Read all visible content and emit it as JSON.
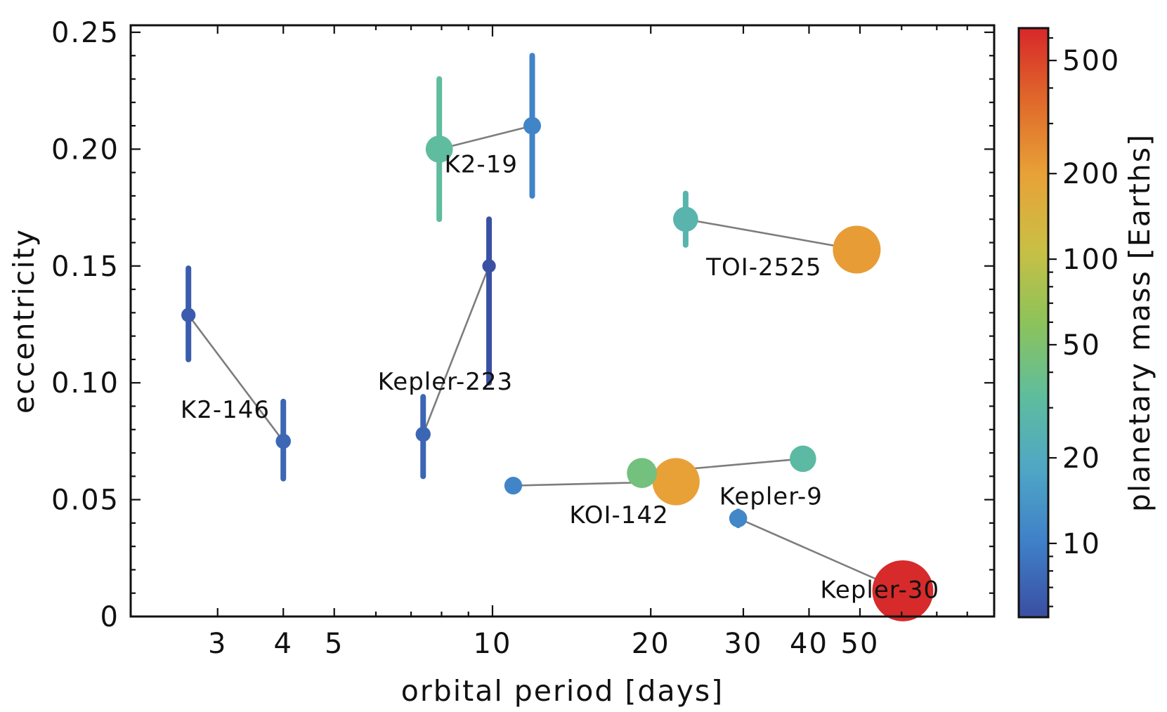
{
  "chart_data": {
    "type": "scatter",
    "xlabel": "orbital period [days]",
    "ylabel": "eccentricity",
    "x_scale": "log",
    "xlim": [
      2.05,
      90
    ],
    "ylim": [
      0,
      0.253
    ],
    "x_ticks": [
      {
        "value": 3,
        "label": "3"
      },
      {
        "value": 4,
        "label": "4"
      },
      {
        "value": 5,
        "label": "5"
      },
      {
        "value": 10,
        "label": "10"
      },
      {
        "value": 20,
        "label": "20"
      },
      {
        "value": 30,
        "label": "30"
      },
      {
        "value": 40,
        "label": "40"
      },
      {
        "value": 50,
        "label": "50"
      }
    ],
    "y_ticks": [
      {
        "value": 0,
        "label": "0"
      },
      {
        "value": 0.05,
        "label": "0.05"
      },
      {
        "value": 0.1,
        "label": "0.10"
      },
      {
        "value": 0.15,
        "label": "0.15"
      },
      {
        "value": 0.2,
        "label": "0.20"
      },
      {
        "value": 0.25,
        "label": "0.25"
      }
    ],
    "grid": false,
    "colorbar": {
      "label": "planetary mass [Earths]",
      "scale": "log",
      "range": [
        5.5,
        650
      ],
      "ticks": [
        {
          "value": 10,
          "label": "10"
        },
        {
          "value": 20,
          "label": "20"
        },
        {
          "value": 50,
          "label": "50"
        },
        {
          "value": 100,
          "label": "100"
        },
        {
          "value": 200,
          "label": "200"
        },
        {
          "value": 500,
          "label": "500"
        }
      ],
      "colormap": [
        "#3a4ea1",
        "#3f7fc8",
        "#4ea6c5",
        "#5fbd9d",
        "#8cc35a",
        "#c9bf45",
        "#e8a237",
        "#e06a2b",
        "#d7282a"
      ]
    },
    "systems": [
      {
        "name": "K2-146",
        "label_at": {
          "x": 2.55,
          "y": 0.085
        },
        "planets": [
          {
            "period": 2.64,
            "ecc": 0.129,
            "err": [
              0.019,
              0.02
            ],
            "mass": 6.5
          },
          {
            "period": 4.0,
            "ecc": 0.075,
            "err": [
              0.016,
              0.017
            ],
            "mass": 7.5
          }
        ]
      },
      {
        "name": "Kepler-223",
        "label_at": {
          "x": 6.05,
          "y": 0.097
        },
        "planets": [
          {
            "period": 7.38,
            "ecc": 0.078,
            "err": [
              0.018,
              0.016
            ],
            "mass": 7.4
          },
          {
            "period": 9.85,
            "ecc": 0.15,
            "err": [
              0.05,
              0.02
            ],
            "mass": 5.7
          }
        ]
      },
      {
        "name": "K2-19",
        "label_at": {
          "x": 8.1,
          "y": 0.19
        },
        "planets": [
          {
            "period": 7.92,
            "ecc": 0.2,
            "err": [
              0.03,
              0.03
            ],
            "mass": 32.4
          },
          {
            "period": 11.9,
            "ecc": 0.21,
            "err": [
              0.03,
              0.03
            ],
            "mass": 10.8
          }
        ]
      },
      {
        "name": "TOI-2525",
        "label_at": {
          "x": 25.5,
          "y": 0.146
        },
        "planets": [
          {
            "period": 23.3,
            "ecc": 0.17,
            "err": [
              0.011,
              0.011
            ],
            "mass": 26.0
          },
          {
            "period": 49.3,
            "ecc": 0.157,
            "err": [
              0.0,
              0.0
            ],
            "mass": 210.0
          }
        ]
      },
      {
        "name": "KOI-142",
        "label_at": {
          "x": 14.0,
          "y": 0.04
        },
        "planets": [
          {
            "period": 10.95,
            "ecc": 0.056,
            "err": [
              0.0,
              0.0
            ],
            "mass": 11.0
          },
          {
            "period": 22.34,
            "ecc": 0.0577,
            "err": [
              0.0,
              0.0
            ],
            "mass": 200.0
          }
        ]
      },
      {
        "name": "Kepler-9",
        "label_at": {
          "x": 27.0,
          "y": 0.048
        },
        "planets": [
          {
            "period": 19.24,
            "ecc": 0.0614,
            "err": [
              0.0,
              0.0
            ],
            "mass": 43.0
          },
          {
            "period": 38.95,
            "ecc": 0.0675,
            "err": [
              0.0,
              0.0
            ],
            "mass": 30.0
          }
        ]
      },
      {
        "name": "Kepler-30",
        "label_at": {
          "x": 42.0,
          "y": 0.008
        },
        "planets": [
          {
            "period": 29.33,
            "ecc": 0.042,
            "err": [
              0.003,
              0.003
            ],
            "mass": 11.3
          },
          {
            "period": 60.32,
            "ecc": 0.011,
            "err": [
              0.0,
              0.0
            ],
            "mass": 640.0
          }
        ]
      }
    ]
  }
}
